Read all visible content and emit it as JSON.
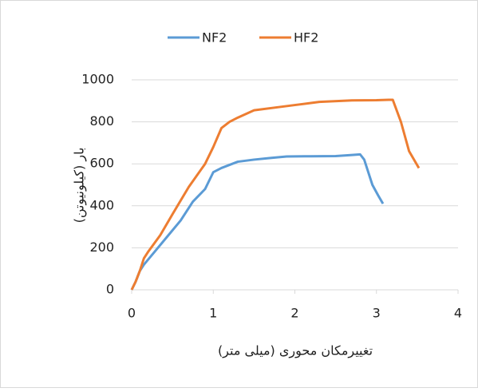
{
  "chart_data": {
    "type": "line",
    "xlabel": "تغییرمکان محوری (میلی متر)",
    "ylabel": "بار (کیلونیوتن)",
    "series": [
      {
        "name": "NF2",
        "color": "#5b9bd5",
        "x": [
          0,
          0.05,
          0.1,
          0.15,
          0.3,
          0.45,
          0.6,
          0.75,
          0.9,
          1.0,
          1.1,
          1.3,
          1.5,
          1.7,
          1.9,
          2.2,
          2.5,
          2.7,
          2.8,
          2.85,
          2.95,
          3.02,
          3.08
        ],
        "values": [
          0,
          40,
          90,
          120,
          190,
          260,
          330,
          420,
          480,
          560,
          580,
          610,
          620,
          628,
          635,
          636,
          637,
          642,
          645,
          620,
          500,
          450,
          410
        ]
      },
      {
        "name": "HF2",
        "color": "#ed7d31",
        "x": [
          0,
          0.05,
          0.1,
          0.15,
          0.2,
          0.35,
          0.5,
          0.7,
          0.9,
          1.0,
          1.1,
          1.2,
          1.3,
          1.5,
          1.8,
          2.0,
          2.3,
          2.7,
          3.0,
          3.15,
          3.2,
          3.3,
          3.4,
          3.52
        ],
        "values": [
          0,
          40,
          90,
          150,
          180,
          260,
          360,
          490,
          600,
          680,
          770,
          800,
          820,
          855,
          870,
          880,
          895,
          902,
          903,
          905,
          905,
          800,
          660,
          580
        ]
      }
    ],
    "xlim": [
      0,
      4
    ],
    "xticks": [
      0,
      1,
      2,
      3,
      4
    ],
    "ylim": [
      0,
      1000
    ],
    "yticks": [
      0,
      200,
      400,
      600,
      800,
      1000
    ],
    "grid": true,
    "legend": "top"
  }
}
